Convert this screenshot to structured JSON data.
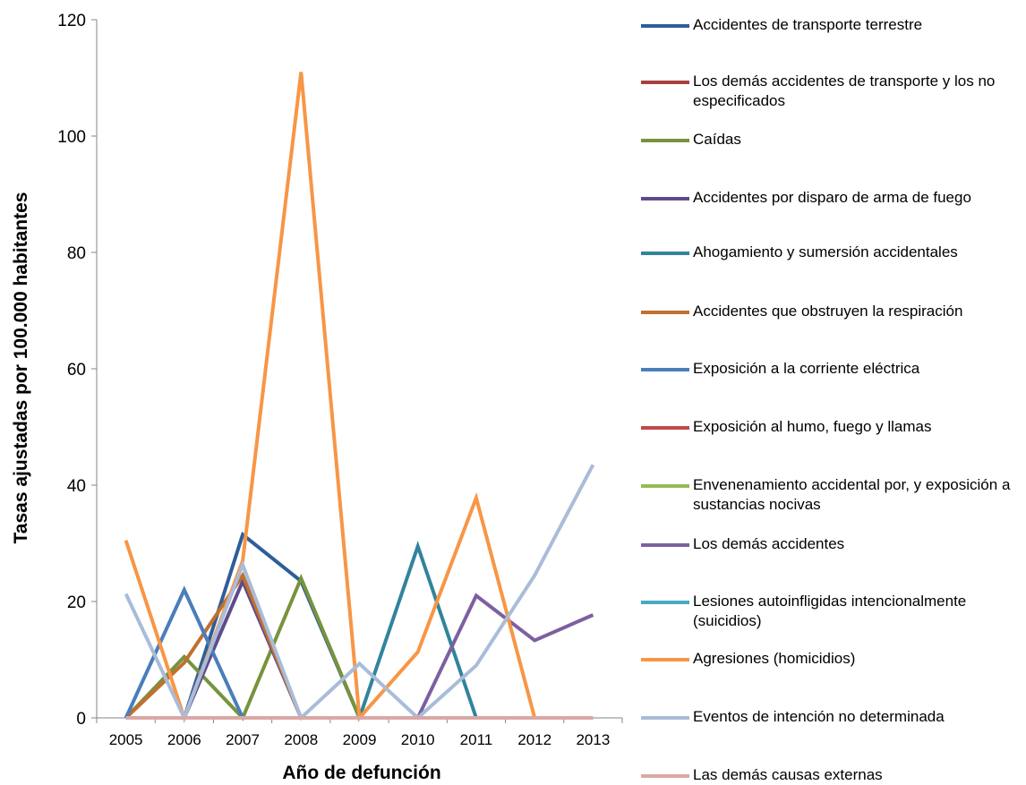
{
  "chart_data": {
    "type": "line",
    "title": "",
    "xlabel": "Año de defunción",
    "ylabel": "Tasas ajustadas por 100.000 habitantes",
    "ylim": [
      0,
      120
    ],
    "yticks": [
      0,
      20,
      40,
      60,
      80,
      100,
      120
    ],
    "categories": [
      "2005",
      "2006",
      "2007",
      "2008",
      "2009",
      "2010",
      "2011",
      "2012",
      "2013"
    ],
    "legend_position": "right",
    "grid": false,
    "series": [
      {
        "name": "Accidentes de transporte terrestre",
        "color": "#2e5d9a",
        "values": [
          0,
          0,
          31.5,
          23.5,
          0,
          0,
          0,
          0,
          0
        ]
      },
      {
        "name": "Los demás accidentes de transporte y los no especificados",
        "color": "#a6403c",
        "values": [
          0,
          0,
          0,
          0,
          0,
          0,
          0,
          0,
          0
        ]
      },
      {
        "name": "Caídas",
        "color": "#77933c",
        "values": [
          0,
          10.5,
          0,
          24,
          0,
          0,
          0,
          0,
          0
        ]
      },
      {
        "name": "Accidentes por disparo de arma de fuego",
        "color": "#5f4b8b",
        "values": [
          0,
          0,
          23.5,
          0,
          0,
          0,
          0,
          0,
          0
        ]
      },
      {
        "name": "Ahogamiento y sumersión accidentales",
        "color": "#31849b",
        "values": [
          0,
          0,
          0,
          0,
          0,
          29.5,
          0,
          0,
          0
        ]
      },
      {
        "name": "Accidentes que obstruyen la respiración",
        "color": "#c0702f",
        "values": [
          0,
          9.5,
          24.5,
          0,
          0,
          0,
          0,
          0,
          0
        ]
      },
      {
        "name": "Exposición a la corriente eléctrica",
        "color": "#4a7ebb",
        "values": [
          0,
          22,
          0,
          0,
          0,
          0,
          0,
          0,
          0
        ]
      },
      {
        "name": "Exposición al humo, fuego y llamas",
        "color": "#be4b48",
        "values": [
          0,
          0,
          0,
          0,
          0,
          0,
          0,
          0,
          0
        ]
      },
      {
        "name": "Envenenamiento accidental por, y exposición a sustancias nocivas",
        "color": "#98b954",
        "values": [
          0,
          0,
          0,
          0,
          0,
          0,
          0,
          0,
          0
        ]
      },
      {
        "name": "Los demás accidentes",
        "color": "#7d60a0",
        "values": [
          0,
          0,
          0,
          0,
          0,
          0,
          21,
          13.3,
          17.7
        ]
      },
      {
        "name": "Lesiones autoinfligidas intencionalmente (suicidios)",
        "color": "#46aac5",
        "values": [
          0,
          0,
          0,
          0,
          0,
          0,
          0,
          0,
          0
        ]
      },
      {
        "name": "Agresiones (homicidios)",
        "color": "#f79646",
        "values": [
          30.5,
          0,
          27,
          111,
          0,
          11.3,
          37.8,
          0,
          0
        ]
      },
      {
        "name": "Eventos de intención no determinada",
        "color": "#a9bcd8",
        "values": [
          21.3,
          0,
          26.3,
          0,
          9.3,
          0,
          9,
          24.5,
          43.5
        ]
      },
      {
        "name": "Las demás causas externas",
        "color": "#d9a8a6",
        "values": [
          0,
          0,
          0,
          0,
          0,
          0,
          0,
          0,
          0
        ]
      }
    ]
  }
}
